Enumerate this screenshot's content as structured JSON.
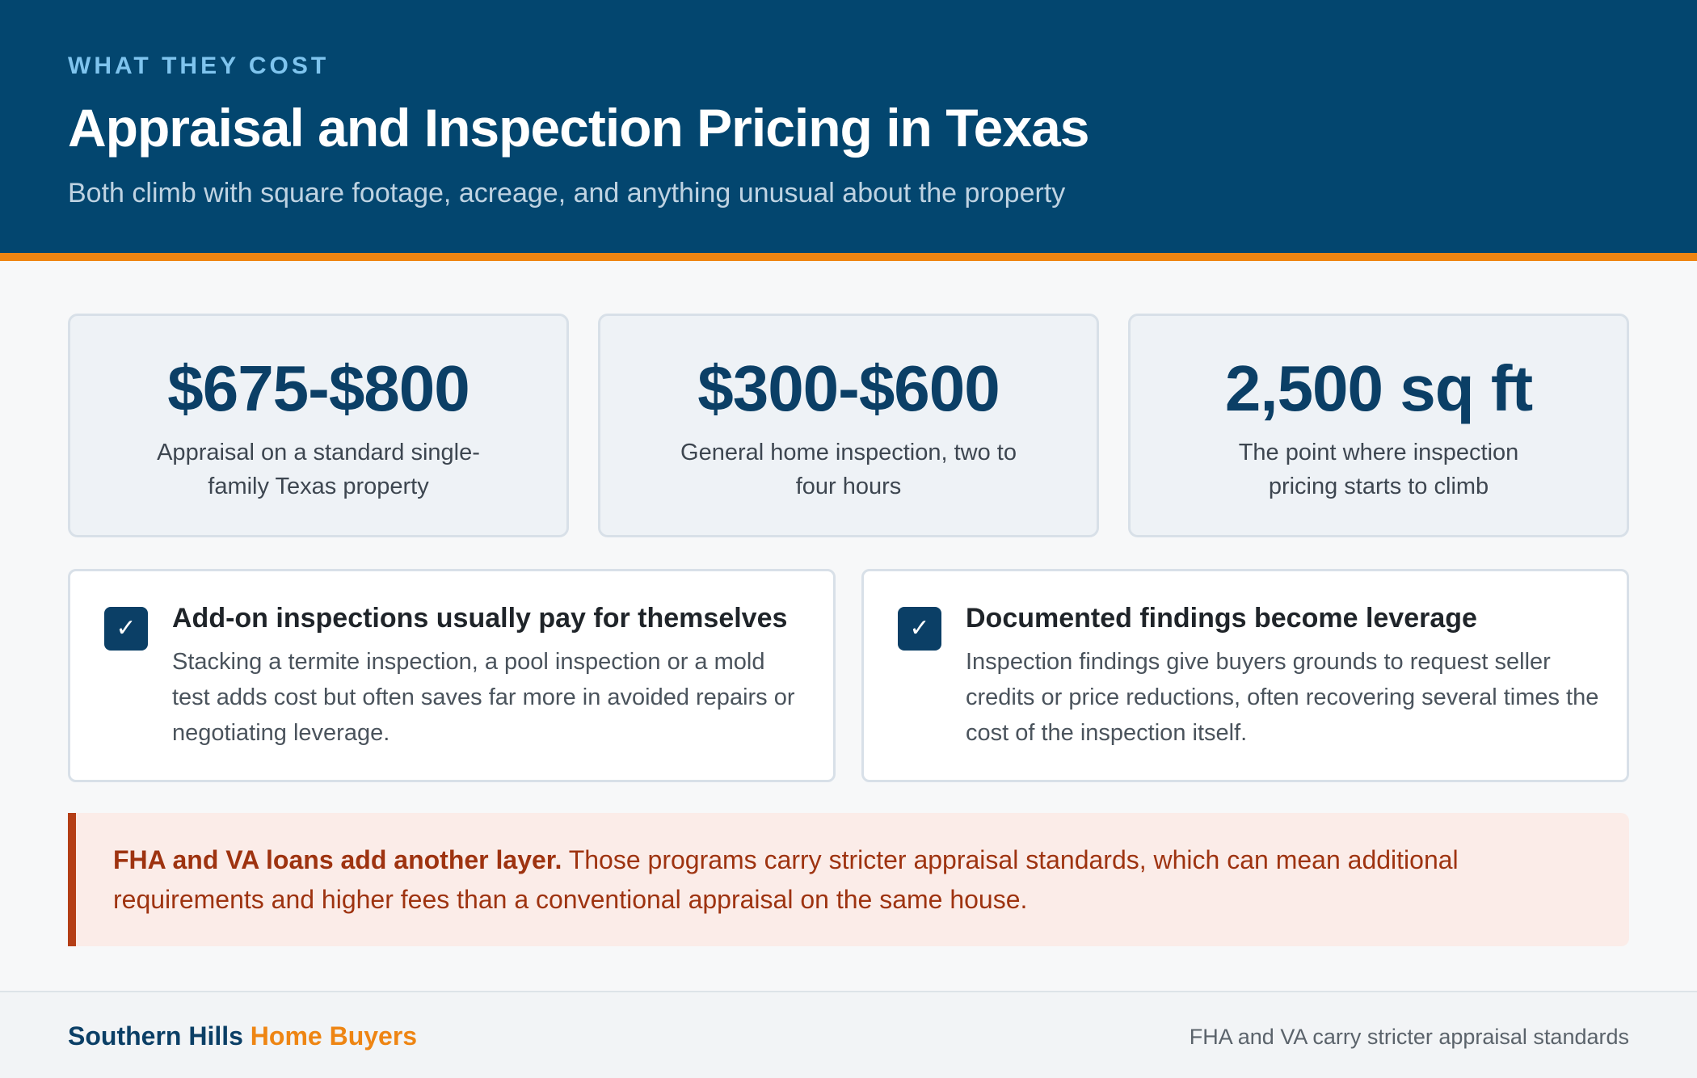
{
  "header": {
    "eyebrow": "WHAT THEY COST",
    "title": "Appraisal and Inspection Pricing in Texas",
    "subtitle": "Both climb with square footage, acreage, and anything unusual about the property"
  },
  "stats": [
    {
      "value": "$675-$800",
      "label": "Appraisal on a standard single-family Texas property"
    },
    {
      "value": "$300-$600",
      "label": "General home inspection, two to four hours"
    },
    {
      "value": "2,500 sq ft",
      "label": "The point where inspection pricing starts to climb"
    }
  ],
  "info_cards": [
    {
      "icon": "check-icon",
      "check_glyph": "✓",
      "title": "Add-on inspections usually pay for themselves",
      "body": "Stacking a termite inspection, a pool inspection or a mold test adds cost but often saves far more in avoided repairs or negotiating leverage."
    },
    {
      "icon": "check-icon",
      "check_glyph": "✓",
      "title": "Documented findings become leverage",
      "body": "Inspection findings give buyers grounds to request seller credits or price reductions, often recovering several times the cost of the inspection itself."
    }
  ],
  "callout": {
    "lead": "FHA and VA loans add another layer.",
    "text": " Those programs carry stricter appraisal standards, which can mean additional requirements and higher fees than a conventional appraisal on the same house."
  },
  "footer": {
    "brand_part1": "Southern Hills",
    "brand_part2": " Home Buyers",
    "note": "FHA and VA carry stricter appraisal standards"
  },
  "colors": {
    "header_bg": "#03466f",
    "accent": "#ee8513",
    "stat_value": "#0b3f66",
    "callout_text": "#9e3310",
    "callout_border": "#b43e16",
    "callout_bg": "#fbece8"
  }
}
